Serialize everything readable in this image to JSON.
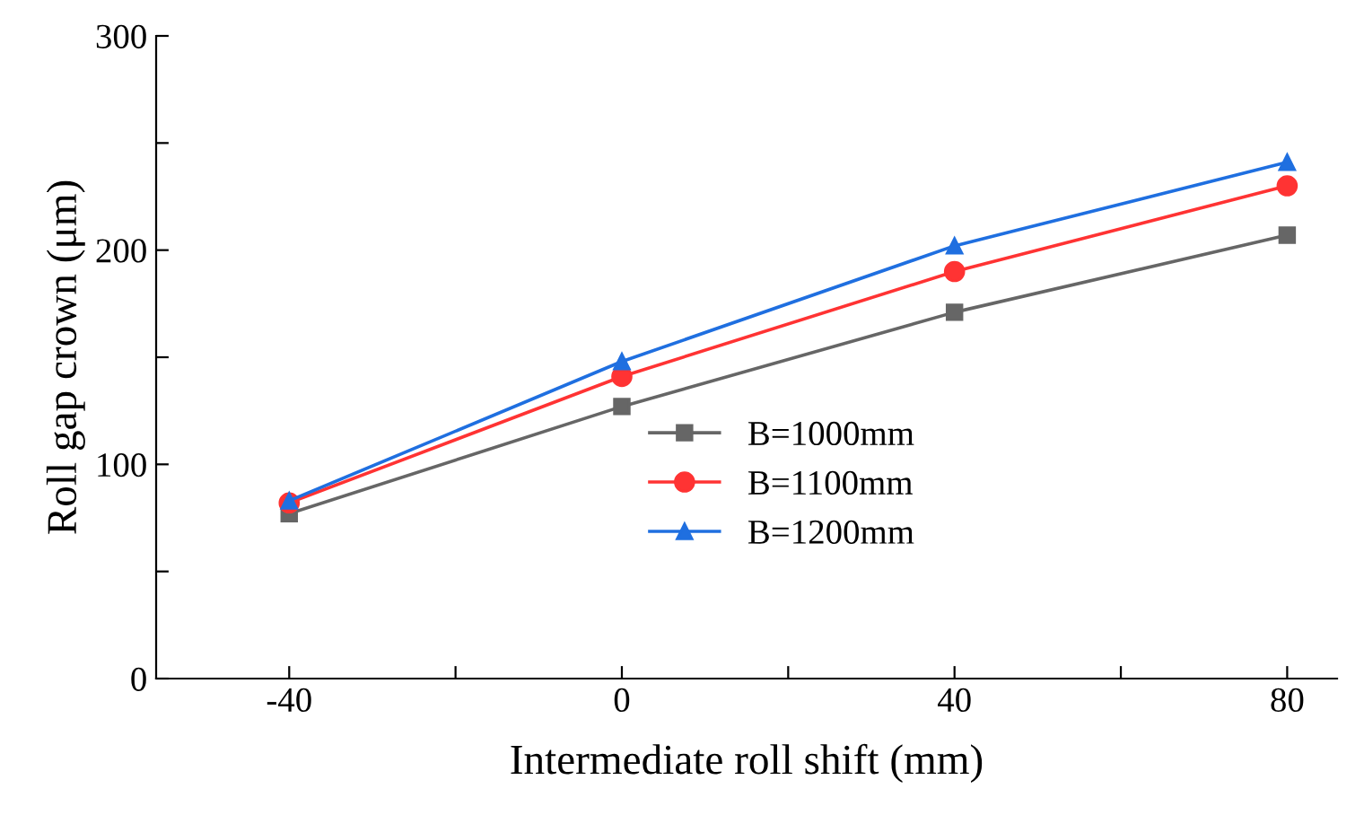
{
  "chart_data": {
    "type": "line",
    "xlabel": "Intermediate roll shift (mm)",
    "ylabel": "Roll gap crown (μm)",
    "x": [
      -40,
      0,
      40,
      80
    ],
    "series": [
      {
        "name": "B=1000mm",
        "color": "#666666",
        "marker": "square",
        "values": [
          77,
          127,
          171,
          207
        ]
      },
      {
        "name": "B=1100mm",
        "color": "#ff3333",
        "marker": "circle",
        "values": [
          82,
          141,
          190,
          230
        ]
      },
      {
        "name": "B=1200mm",
        "color": "#1f6fe0",
        "marker": "triangle",
        "values": [
          83,
          148,
          202,
          241
        ]
      }
    ],
    "xlim": [
      -56,
      86
    ],
    "ylim": [
      0,
      300
    ],
    "xticks": [
      -40,
      {
        "value": -20,
        "label": null
      },
      0,
      {
        "value": 20,
        "label": null
      },
      40,
      {
        "value": 60,
        "label": null
      },
      80
    ],
    "yticks": [
      0,
      {
        "value": 50,
        "label": null
      },
      100,
      {
        "value": 150,
        "label": null
      },
      200,
      {
        "value": 250,
        "label": null
      },
      300
    ],
    "legend": "center",
    "grid": false,
    "line_style": "solid"
  }
}
